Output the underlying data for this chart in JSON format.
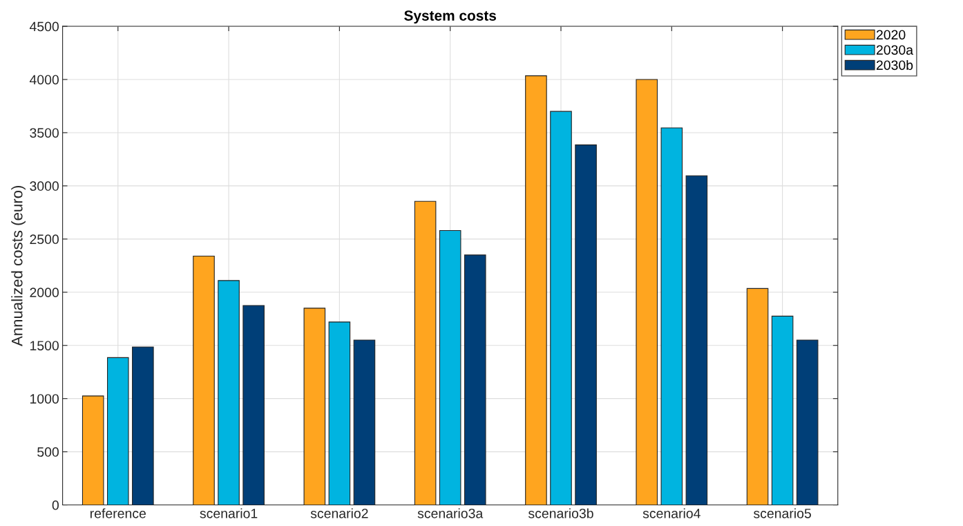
{
  "chart_data": {
    "type": "bar",
    "title": "System costs",
    "ylabel": "Annualized costs (euro)",
    "categories": [
      "reference",
      "scenario1",
      "scenario2",
      "scenario3a",
      "scenario3b",
      "scenario4",
      "scenario5"
    ],
    "series": [
      {
        "name": "2020",
        "color": "#ffa51f",
        "values": [
          1025,
          2340,
          1850,
          2855,
          4035,
          4000,
          2035
        ]
      },
      {
        "name": "2030a",
        "color": "#00b4e0",
        "values": [
          1385,
          2110,
          1720,
          2580,
          3700,
          3545,
          1775
        ]
      },
      {
        "name": "2030b",
        "color": "#003f78",
        "values": [
          1485,
          1875,
          1550,
          2350,
          3385,
          3095,
          1550
        ]
      }
    ],
    "ylim": [
      0,
      4500
    ],
    "yticks": [
      0,
      500,
      1000,
      1500,
      2000,
      2500,
      3000,
      3500,
      4000,
      4500
    ],
    "grid": true,
    "legend": "top right"
  }
}
